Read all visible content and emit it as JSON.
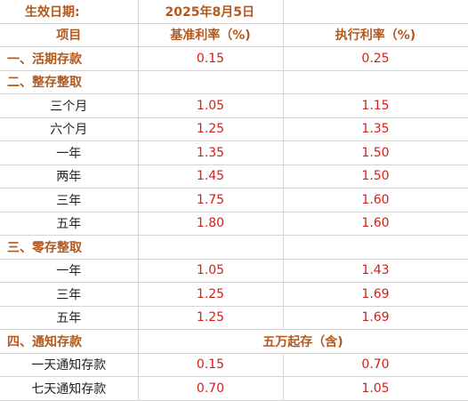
{
  "effective_date": {
    "label": "生效日期:",
    "value": "2025年8月5日"
  },
  "header": {
    "item": "项目",
    "base_rate": "基准利率（%)",
    "exec_rate": "执行利率（%)"
  },
  "demand": {
    "title": "一、活期存款",
    "base": "0.15",
    "exec": "0.25"
  },
  "lump_sum": {
    "title": "二、整存整取",
    "rows": [
      {
        "term": "三个月",
        "base": "1.05",
        "exec": "1.15"
      },
      {
        "term": "六个月",
        "base": "1.25",
        "exec": "1.35"
      },
      {
        "term": "一年",
        "base": "1.35",
        "exec": "1.50"
      },
      {
        "term": "两年",
        "base": "1.45",
        "exec": "1.50"
      },
      {
        "term": "三年",
        "base": "1.75",
        "exec": "1.60"
      },
      {
        "term": "五年",
        "base": "1.80",
        "exec": "1.60"
      }
    ]
  },
  "installment": {
    "title": "三、零存整取",
    "rows": [
      {
        "term": "一年",
        "base": "1.05",
        "exec": "1.43"
      },
      {
        "term": "三年",
        "base": "1.25",
        "exec": "1.69"
      },
      {
        "term": "五年",
        "base": "1.25",
        "exec": "1.69"
      }
    ]
  },
  "notice": {
    "title": "四、通知存款",
    "note": "五万起存（含)",
    "rows": [
      {
        "term": "一天通知存款",
        "base": "0.15",
        "exec": "0.70"
      },
      {
        "term": "七天通知存款",
        "base": "0.70",
        "exec": "1.05"
      }
    ]
  }
}
